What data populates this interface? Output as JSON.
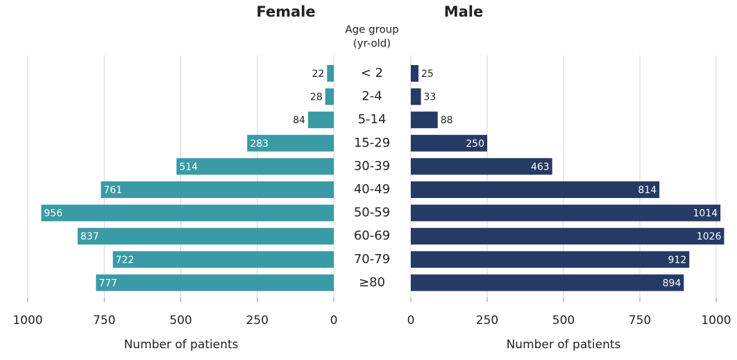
{
  "chart_data": {
    "type": "pyramid",
    "category_title": [
      "Age group",
      "(yr-old)"
    ],
    "categories": [
      "< 2",
      "2-4",
      "5-14",
      "15-29",
      "30-39",
      "40-49",
      "50-59",
      "60-69",
      "70-79",
      "≥80"
    ],
    "grid": true,
    "series": [
      {
        "name": "Female",
        "color": "#3a9aa6",
        "values": [
          22,
          28,
          84,
          283,
          514,
          761,
          956,
          837,
          722,
          777
        ],
        "xlim": [
          1000,
          0
        ],
        "xticks": [
          1000,
          750,
          500,
          250,
          0
        ],
        "xlabel": "Number of patients"
      },
      {
        "name": "Male",
        "color": "#253a64",
        "values": [
          25,
          33,
          88,
          250,
          463,
          814,
          1014,
          1026,
          912,
          894
        ],
        "xlim": [
          0,
          1000
        ],
        "xticks": [
          0,
          250,
          500,
          750,
          1000
        ],
        "xlabel": "Number of patients"
      }
    ]
  }
}
